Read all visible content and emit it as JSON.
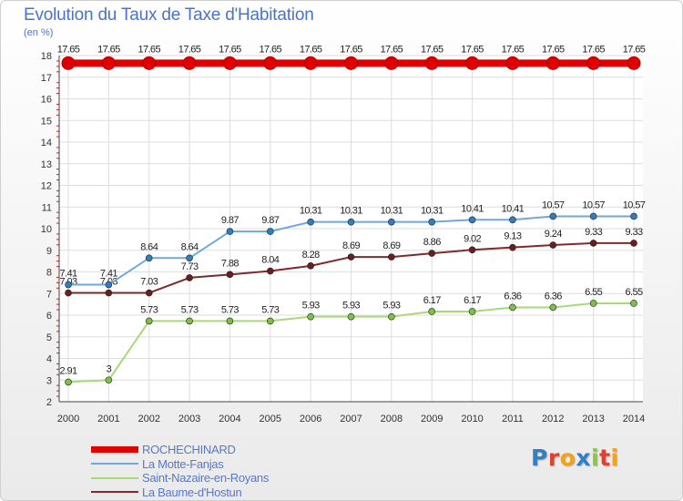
{
  "title": "Evolution du Taux de Taxe d'Habitation",
  "subtitle": "(en %)",
  "logo": {
    "text": "Proxiti",
    "letter_colors": [
      "#2f7fc9",
      "#e0402f",
      "#f2a31a",
      "#2f7fc9",
      "#8dc63f",
      "#e0402f",
      "#f2a31a"
    ]
  },
  "chart_data": {
    "type": "line",
    "title": "Evolution du Taux de Taxe d'Habitation",
    "ylabel": "(en %)",
    "xlabel": "",
    "x": [
      2000,
      2001,
      2002,
      2003,
      2004,
      2005,
      2006,
      2007,
      2008,
      2009,
      2010,
      2011,
      2012,
      2013,
      2014
    ],
    "ylim": [
      2,
      18
    ],
    "yticks": [
      2,
      3,
      4,
      5,
      6,
      7,
      8,
      9,
      10,
      11,
      12,
      13,
      14,
      15,
      16,
      17,
      18
    ],
    "grid": true,
    "legend_position": "bottom-left",
    "series": [
      {
        "name": "ROCHECHINARD",
        "color": "#e00000",
        "values": [
          17.65,
          17.65,
          17.65,
          17.65,
          17.65,
          17.65,
          17.65,
          17.65,
          17.65,
          17.65,
          17.65,
          17.65,
          17.65,
          17.65,
          17.65
        ],
        "labels": [
          "17.65",
          "17.65",
          "17.65",
          "17.65",
          "17.65",
          "17.65",
          "17.65",
          "17.65",
          "17.65",
          "17.65",
          "17.65",
          "17.65",
          "17.65",
          "17.65",
          "17.65"
        ]
      },
      {
        "name": "La Motte-Fanjas",
        "color": "#6fa8dc",
        "marker": "#2e7fc2",
        "values": [
          7.41,
          7.41,
          8.64,
          8.64,
          9.87,
          9.87,
          10.31,
          10.31,
          10.31,
          10.31,
          10.41,
          10.41,
          10.57,
          10.57,
          10.57
        ],
        "labels": [
          "7.41",
          "7.41",
          "8.64",
          "8.64",
          "9.87",
          "9.87",
          "10.31",
          "10.31",
          "10.31",
          "10.31",
          "10.41",
          "10.41",
          "10.57",
          "10.57",
          "10.57"
        ]
      },
      {
        "name": "Saint-Nazaire-en-Royans",
        "color": "#a8d97a",
        "marker": "#7cc242",
        "values": [
          2.91,
          3,
          5.73,
          5.73,
          5.73,
          5.73,
          5.93,
          5.93,
          5.93,
          6.17,
          6.17,
          6.36,
          6.36,
          6.55,
          6.55
        ],
        "labels": [
          "2.91",
          "3",
          "5.73",
          "5.73",
          "5.73",
          "5.73",
          "5.93",
          "5.93",
          "5.93",
          "6.17",
          "6.17",
          "6.36",
          "6.36",
          "6.55",
          "6.55"
        ]
      },
      {
        "name": "La Baume-d'Hostun",
        "color": "#7b2c2c",
        "marker": "#6a1e1e",
        "values": [
          7.03,
          7.03,
          7.03,
          7.73,
          7.88,
          8.04,
          8.28,
          8.69,
          8.69,
          8.86,
          9.02,
          9.13,
          9.24,
          9.33,
          9.33
        ],
        "labels": [
          "7.03",
          "7.03",
          "7.03",
          "7.73",
          "7.88",
          "8.04",
          "8.28",
          "8.69",
          "8.69",
          "8.86",
          "9.02",
          "9.13",
          "9.24",
          "9.33",
          "9.33"
        ]
      }
    ]
  }
}
